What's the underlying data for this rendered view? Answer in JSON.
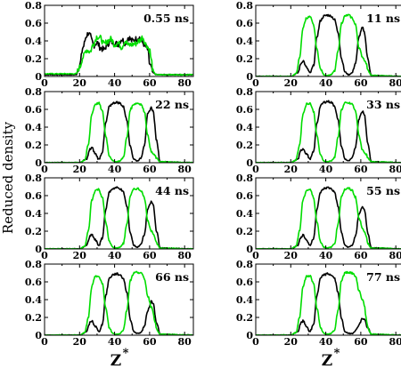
{
  "figure": {
    "ylabel": "Reduced density",
    "xlabel": "Z",
    "xlabel_superscript": "*"
  },
  "chart_data": {
    "type": "line",
    "x_ticks": [
      0,
      20,
      40,
      60,
      80
    ],
    "y_ticks": [
      "0",
      "0.2",
      "0.4",
      "0.6",
      "0.8"
    ],
    "xlim": [
      0,
      85
    ],
    "ylim": [
      0,
      0.8
    ],
    "grid": false,
    "series_colors": {
      "black": "#000000",
      "green": "#00dd00"
    },
    "panels": [
      {
        "time": "0.55 ns",
        "series": [
          {
            "color": "black",
            "x": [
              0,
              18,
              20,
              22,
              24,
              25,
              26,
              27,
              28,
              30,
              32,
              34,
              36,
              38,
              40,
              42,
              44,
              46,
              48,
              50,
              52,
              54,
              56,
              58,
              59,
              60,
              62,
              64,
              84
            ],
            "y": [
              0.02,
              0.02,
              0.12,
              0.33,
              0.46,
              0.49,
              0.46,
              0.4,
              0.35,
              0.38,
              0.32,
              0.3,
              0.37,
              0.39,
              0.38,
              0.36,
              0.42,
              0.38,
              0.44,
              0.4,
              0.42,
              0.44,
              0.38,
              0.33,
              0.3,
              0.14,
              0.04,
              0.02,
              0.02
            ]
          },
          {
            "color": "green",
            "x": [
              0,
              18,
              20,
              22,
              24,
              26,
              28,
              30,
              32,
              34,
              36,
              38,
              40,
              42,
              44,
              46,
              48,
              50,
              52,
              54,
              56,
              58,
              60,
              61,
              62,
              64,
              84
            ],
            "y": [
              0.03,
              0.03,
              0.1,
              0.22,
              0.3,
              0.28,
              0.37,
              0.45,
              0.43,
              0.36,
              0.4,
              0.42,
              0.36,
              0.38,
              0.33,
              0.4,
              0.35,
              0.36,
              0.37,
              0.4,
              0.44,
              0.36,
              0.3,
              0.18,
              0.05,
              0.02,
              0.02
            ]
          }
        ]
      },
      {
        "time": "11 ns",
        "series": [
          {
            "color": "black",
            "x": [
              0,
              20,
              24,
              26,
              27,
              29,
              31,
              33,
              35,
              37,
              39,
              41,
              43,
              45,
              47,
              49,
              51,
              53,
              55,
              57,
              59,
              61,
              62,
              64,
              66,
              84
            ],
            "y": [
              0,
              0,
              0.04,
              0.15,
              0.18,
              0.1,
              0.04,
              0.12,
              0.45,
              0.63,
              0.68,
              0.69,
              0.68,
              0.64,
              0.5,
              0.2,
              0.05,
              0.02,
              0.04,
              0.15,
              0.45,
              0.55,
              0.5,
              0.2,
              0.01,
              0
            ]
          },
          {
            "color": "green",
            "x": [
              0,
              20,
              23,
              25,
              27,
              29,
              31,
              33,
              35,
              37,
              39,
              41,
              43,
              45,
              47,
              49,
              51,
              53,
              55,
              57,
              59,
              61,
              62,
              63,
              64,
              66,
              84
            ],
            "y": [
              0,
              0,
              0.03,
              0.2,
              0.55,
              0.66,
              0.67,
              0.58,
              0.3,
              0.08,
              0.02,
              0.01,
              0.02,
              0.06,
              0.28,
              0.6,
              0.68,
              0.69,
              0.66,
              0.58,
              0.32,
              0.22,
              0.19,
              0.15,
              0.08,
              0.01,
              0
            ]
          }
        ]
      },
      {
        "time": "22 ns",
        "series": [
          {
            "color": "black",
            "x": [
              0,
              20,
              24,
              26,
              27,
              29,
              31,
              33,
              35,
              37,
              39,
              41,
              43,
              45,
              47,
              49,
              51,
              53,
              55,
              57,
              59,
              61,
              62,
              64,
              66,
              84
            ],
            "y": [
              0,
              0,
              0.04,
              0.15,
              0.17,
              0.1,
              0.04,
              0.12,
              0.45,
              0.63,
              0.67,
              0.68,
              0.67,
              0.63,
              0.48,
              0.18,
              0.04,
              0.02,
              0.05,
              0.2,
              0.55,
              0.62,
              0.58,
              0.25,
              0.01,
              0
            ]
          },
          {
            "color": "green",
            "x": [
              0,
              20,
              23,
              25,
              27,
              29,
              31,
              33,
              35,
              37,
              39,
              41,
              43,
              45,
              47,
              49,
              51,
              53,
              55,
              57,
              59,
              61,
              63,
              64,
              66,
              84
            ],
            "y": [
              0,
              0,
              0.03,
              0.2,
              0.55,
              0.66,
              0.67,
              0.58,
              0.3,
              0.08,
              0.02,
              0.01,
              0.02,
              0.06,
              0.28,
              0.6,
              0.66,
              0.67,
              0.66,
              0.58,
              0.3,
              0.12,
              0.08,
              0.05,
              0.01,
              0
            ]
          }
        ]
      },
      {
        "time": "33 ns",
        "series": [
          {
            "color": "black",
            "x": [
              0,
              20,
              24,
              26,
              27,
              29,
              31,
              33,
              35,
              37,
              39,
              41,
              43,
              45,
              47,
              49,
              51,
              53,
              55,
              57,
              59,
              61,
              62,
              64,
              66,
              84
            ],
            "y": [
              0,
              0,
              0.04,
              0.14,
              0.16,
              0.1,
              0.04,
              0.12,
              0.45,
              0.64,
              0.68,
              0.69,
              0.68,
              0.64,
              0.48,
              0.18,
              0.04,
              0.02,
              0.05,
              0.18,
              0.5,
              0.58,
              0.55,
              0.22,
              0.01,
              0
            ]
          },
          {
            "color": "green",
            "x": [
              0,
              20,
              23,
              25,
              27,
              29,
              31,
              33,
              35,
              37,
              39,
              41,
              43,
              45,
              47,
              49,
              51,
              53,
              55,
              57,
              59,
              61,
              63,
              64,
              66,
              84
            ],
            "y": [
              0,
              0,
              0.03,
              0.2,
              0.55,
              0.66,
              0.67,
              0.58,
              0.3,
              0.08,
              0.02,
              0.01,
              0.02,
              0.06,
              0.28,
              0.6,
              0.67,
              0.67,
              0.66,
              0.58,
              0.3,
              0.14,
              0.1,
              0.05,
              0.01,
              0
            ]
          }
        ]
      },
      {
        "time": "44 ns",
        "series": [
          {
            "color": "black",
            "x": [
              0,
              20,
              24,
              26,
              27,
              29,
              31,
              33,
              35,
              37,
              39,
              41,
              43,
              45,
              47,
              49,
              51,
              53,
              55,
              57,
              59,
              61,
              62,
              64,
              66,
              84
            ],
            "y": [
              0,
              0,
              0.04,
              0.14,
              0.16,
              0.1,
              0.04,
              0.12,
              0.45,
              0.64,
              0.68,
              0.69,
              0.68,
              0.64,
              0.48,
              0.18,
              0.04,
              0.02,
              0.05,
              0.16,
              0.45,
              0.53,
              0.5,
              0.2,
              0.01,
              0
            ]
          },
          {
            "color": "green",
            "x": [
              0,
              20,
              23,
              25,
              27,
              29,
              31,
              33,
              35,
              37,
              39,
              41,
              43,
              45,
              47,
              49,
              51,
              53,
              55,
              57,
              59,
              61,
              62,
              63,
              64,
              66,
              84
            ],
            "y": [
              0,
              0,
              0.03,
              0.2,
              0.55,
              0.66,
              0.67,
              0.58,
              0.3,
              0.08,
              0.02,
              0.01,
              0.02,
              0.06,
              0.28,
              0.6,
              0.67,
              0.68,
              0.66,
              0.58,
              0.32,
              0.2,
              0.18,
              0.12,
              0.06,
              0.01,
              0
            ]
          }
        ]
      },
      {
        "time": "55 ns",
        "series": [
          {
            "color": "black",
            "x": [
              0,
              20,
              24,
              26,
              27,
              29,
              31,
              33,
              35,
              37,
              39,
              41,
              43,
              45,
              47,
              49,
              51,
              53,
              55,
              57,
              59,
              61,
              62,
              64,
              66,
              84
            ],
            "y": [
              0,
              0,
              0.04,
              0.14,
              0.16,
              0.1,
              0.04,
              0.12,
              0.45,
              0.64,
              0.68,
              0.69,
              0.68,
              0.64,
              0.48,
              0.18,
              0.04,
              0.02,
              0.04,
              0.14,
              0.4,
              0.47,
              0.45,
              0.18,
              0.01,
              0
            ]
          },
          {
            "color": "green",
            "x": [
              0,
              20,
              23,
              25,
              27,
              29,
              31,
              33,
              35,
              37,
              39,
              41,
              43,
              45,
              47,
              49,
              51,
              53,
              55,
              57,
              59,
              61,
              62,
              63,
              64,
              66,
              84
            ],
            "y": [
              0,
              0,
              0.03,
              0.2,
              0.55,
              0.66,
              0.67,
              0.58,
              0.3,
              0.08,
              0.02,
              0.01,
              0.02,
              0.06,
              0.28,
              0.6,
              0.67,
              0.68,
              0.66,
              0.58,
              0.34,
              0.24,
              0.2,
              0.14,
              0.06,
              0.01,
              0
            ]
          }
        ]
      },
      {
        "time": "66 ns",
        "series": [
          {
            "color": "black",
            "x": [
              0,
              20,
              24,
              26,
              27,
              29,
              31,
              33,
              35,
              37,
              39,
              41,
              43,
              45,
              47,
              49,
              51,
              53,
              55,
              57,
              59,
              61,
              62,
              64,
              66,
              84
            ],
            "y": [
              0,
              0,
              0.04,
              0.14,
              0.16,
              0.1,
              0.04,
              0.12,
              0.45,
              0.64,
              0.68,
              0.69,
              0.68,
              0.64,
              0.48,
              0.18,
              0.04,
              0.02,
              0.03,
              0.1,
              0.28,
              0.38,
              0.36,
              0.14,
              0.01,
              0
            ]
          },
          {
            "color": "green",
            "x": [
              0,
              20,
              23,
              25,
              27,
              29,
              31,
              33,
              35,
              37,
              39,
              41,
              43,
              45,
              47,
              49,
              51,
              53,
              55,
              57,
              59,
              61,
              62,
              63,
              64,
              66,
              84
            ],
            "y": [
              0,
              0,
              0.03,
              0.2,
              0.55,
              0.66,
              0.67,
              0.58,
              0.3,
              0.08,
              0.02,
              0.01,
              0.02,
              0.06,
              0.28,
              0.62,
              0.7,
              0.71,
              0.7,
              0.64,
              0.44,
              0.32,
              0.26,
              0.16,
              0.06,
              0.01,
              0
            ]
          }
        ]
      },
      {
        "time": "77 ns",
        "series": [
          {
            "color": "black",
            "x": [
              0,
              20,
              24,
              26,
              27,
              29,
              31,
              33,
              35,
              37,
              39,
              41,
              43,
              45,
              47,
              49,
              51,
              53,
              55,
              57,
              59,
              61,
              62,
              64,
              66,
              84
            ],
            "y": [
              0,
              0,
              0.04,
              0.14,
              0.16,
              0.1,
              0.04,
              0.12,
              0.45,
              0.64,
              0.68,
              0.69,
              0.68,
              0.64,
              0.48,
              0.18,
              0.04,
              0.02,
              0.02,
              0.05,
              0.12,
              0.19,
              0.18,
              0.08,
              0.01,
              0
            ]
          },
          {
            "color": "green",
            "x": [
              0,
              20,
              23,
              25,
              27,
              29,
              31,
              33,
              35,
              37,
              39,
              41,
              43,
              45,
              47,
              49,
              51,
              53,
              55,
              57,
              59,
              61,
              62,
              63,
              64,
              66,
              84
            ],
            "y": [
              0,
              0,
              0.03,
              0.2,
              0.55,
              0.66,
              0.67,
              0.58,
              0.3,
              0.08,
              0.02,
              0.01,
              0.02,
              0.06,
              0.28,
              0.62,
              0.7,
              0.71,
              0.7,
              0.66,
              0.5,
              0.4,
              0.34,
              0.2,
              0.08,
              0.01,
              0
            ]
          }
        ]
      }
    ]
  }
}
